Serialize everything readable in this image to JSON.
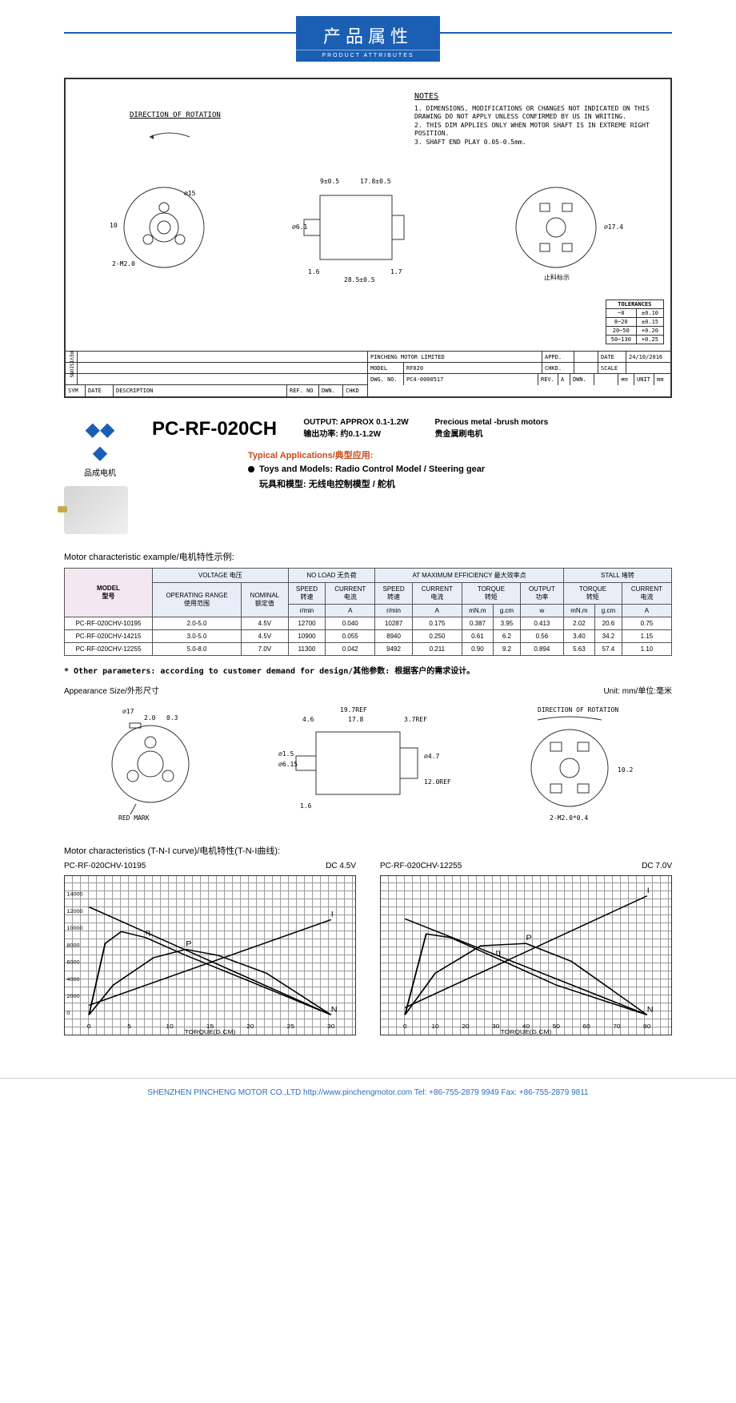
{
  "header": {
    "cn": "产品属性",
    "en": "PRODUCT ATTRIBUTES"
  },
  "drawing": {
    "rotation_label": "DIRECTION OF ROTATION",
    "notes_title": "NOTES",
    "notes": [
      "1. DIMENSIONS, MODIFICATIONS OR CHANGES NOT INDICATED ON THIS DRAWING DO NOT APPLY UNLESS CONFIRMED BY US IN WRITING.",
      "2. THIS DIM APPLIES ONLY WHEN MOTOR SHAFT IS IN EXTREME RIGHT POSITION.",
      "3. SHAFT END PLAY 0.05-0.5mm."
    ],
    "tolerances_title": "TOLERANCES",
    "tolerances": [
      {
        "range": "~8",
        "tol": "±0.10"
      },
      {
        "range": "8~20",
        "tol": "±0.15"
      },
      {
        "range": "20~50",
        "tol": "+0.20"
      },
      {
        "range": "50~130",
        "tol": "+0.25"
      }
    ],
    "dims": {
      "front_dia": "⌀15",
      "front_m": "2-M2.0",
      "side_top": "9±0.5",
      "side_len": "17.8±0.5",
      "side_shaft_d": "⌀6.1",
      "side_shaft_l": "1.6",
      "side_total": "28.5±0.5",
      "side_tab": "1.7",
      "back_dia": "⌀17.4",
      "back_note": "止料标示",
      "front_outer": "10"
    },
    "titleblock": {
      "company": "PINCHENG MOTOR LIMITED",
      "model_lbl": "MODEL",
      "model": "RF020",
      "dwg_lbl": "DWG. NO.",
      "dwg": "PC4-0000517",
      "rev_lbl": "REV.",
      "rev": "A",
      "appd": "APPD.",
      "chkd": "CHKD.",
      "dwn": "DWN.",
      "date_lbl": "DATE",
      "date": "24/10/2016",
      "scale_lbl": "SCALE",
      "unit_lbl": "UNIT",
      "unit": "mm",
      "left_hdrs": [
        "SYM",
        "DATE",
        "DESCRIPTION",
        "REF. NO",
        "DWN.",
        "CHKD"
      ],
      "revisions": "REVISIONS"
    }
  },
  "product": {
    "logo_text": "品成电机",
    "name": "PC-RF-020CH",
    "output_en": "OUTPUT: APPROX 0.1-1.2W",
    "output_cn": "输出功率: 约0.1-1.2W",
    "type_en": "Precious metal -brush motors",
    "type_cn": "贵金属刷电机",
    "app_title": "Typical Applications/典型应用:",
    "app_en": "Toys and Models: Radio Control Model / Steering gear",
    "app_cn": "玩具和模型: 无线电控制模型 / 舵机"
  },
  "char_section": "Motor characteristic example/电机特性示例:",
  "char_table": {
    "headers": {
      "model": "MODEL\n型号",
      "voltage": "VOLTAGE 电压",
      "noload": "NO LOAD 无负荷",
      "maxeff": "AT MAXIMUM EFFICIENCY   最大效率点",
      "stall": "STALL 堵转",
      "op_range": "OPERATING RANGE\n使用范围",
      "nominal": "NOMINAL\n额定值",
      "speed": "SPEED\n转速",
      "current": "CURRENT\n电流",
      "torque": "TORQUE\n转矩",
      "output": "OUTPUT\n功率",
      "rmin": "r/min",
      "a": "A",
      "mnm": "mN.m",
      "gcm": "g.cm",
      "w": "w"
    },
    "rows": [
      {
        "model": "PC-RF-020CHV-10195",
        "range": "2.0-5.0",
        "nom": "4.5V",
        "nl_spd": "12700",
        "nl_cur": "0.040",
        "me_spd": "10287",
        "me_cur": "0.175",
        "me_mnm": "0.387",
        "me_gcm": "3.95",
        "me_w": "0.413",
        "st_mnm": "2.02",
        "st_gcm": "20.6",
        "st_a": "0.75"
      },
      {
        "model": "PC-RF-020CHV-14215",
        "range": "3.0-5.0",
        "nom": "4.5V",
        "nl_spd": "10900",
        "nl_cur": "0.055",
        "me_spd": "8940",
        "me_cur": "0.250",
        "me_mnm": "0.61",
        "me_gcm": "6.2",
        "me_w": "0.56",
        "st_mnm": "3.40",
        "st_gcm": "34.2",
        "st_a": "1.15"
      },
      {
        "model": "PC-RF-020CHV-12255",
        "range": "5.0-8.0",
        "nom": "7.0V",
        "nl_spd": "11300",
        "nl_cur": "0.042",
        "me_spd": "9492",
        "me_cur": "0.211",
        "me_mnm": "0.90",
        "me_gcm": "9.2",
        "me_w": "0.894",
        "st_mnm": "5.63",
        "st_gcm": "57.4",
        "st_a": "1.10"
      }
    ]
  },
  "other_params": "* Other parameters: according to customer demand for design/其他参数: 根据客户的需求设计。",
  "appearance": {
    "label": "Appearance Size/外形尺寸",
    "unit": "Unit: mm/单位:毫米"
  },
  "dim2": {
    "d17": "⌀17",
    "w2": "2.0",
    "w03": "0.3",
    "red": "RED MARK",
    "ref197": "19.7REF",
    "w46": "4.6",
    "w178": "17.8",
    "ref37": "3.7REF",
    "d15": "⌀1.5",
    "d615": "⌀6.15",
    "w16": "1.6",
    "d47": "⌀4.7",
    "ref12": "12.0REF",
    "rot": "DIRECTION OF ROTATION",
    "m2": "2-M2.0*0.4",
    "h102": "10.2"
  },
  "curves": {
    "title": "Motor characteristics (T-N-I curve)/电机特性(T-N-I曲线):",
    "c1_model": "PC-RF-020CHV-10195",
    "c1_v": "DC 4.5V",
    "c2_model": "PC-RF-020CHV-12255",
    "c2_v": "DC 7.0V",
    "axes": {
      "n": "N",
      "i": "I",
      "p": "P",
      "torque": "TORQUE(G.CM)"
    },
    "c1": {
      "x_max": 30,
      "n_max": 14000,
      "i_max": 100,
      "p_max": 1.0,
      "x_ticks": [
        0,
        5,
        10,
        15,
        20,
        25,
        30
      ],
      "n_ticks": [
        0,
        2000,
        4000,
        6000,
        8000,
        10000,
        12000,
        14000
      ],
      "n_line": [
        [
          0,
          12700
        ],
        [
          30,
          0
        ]
      ],
      "i_line": [
        [
          0,
          8
        ],
        [
          30,
          80
        ]
      ],
      "p_line": [
        [
          0,
          0
        ],
        [
          3,
          25
        ],
        [
          8,
          48
        ],
        [
          12,
          55
        ],
        [
          16,
          50
        ],
        [
          22,
          35
        ],
        [
          30,
          0
        ]
      ],
      "eff_line": [
        [
          0,
          0
        ],
        [
          2,
          60
        ],
        [
          4,
          70
        ],
        [
          7,
          65
        ],
        [
          12,
          50
        ],
        [
          20,
          28
        ],
        [
          30,
          0
        ]
      ]
    },
    "c2": {
      "x_max": 80,
      "n_max": 14000,
      "i_max": 100,
      "p_max": 5.0,
      "x_ticks": [
        0,
        10,
        20,
        30,
        40,
        50,
        60,
        70,
        80
      ],
      "n_line": [
        [
          0,
          11300
        ],
        [
          80,
          0
        ]
      ],
      "i_line": [
        [
          0,
          6
        ],
        [
          80,
          100
        ]
      ],
      "p_line": [
        [
          0,
          0
        ],
        [
          10,
          35
        ],
        [
          25,
          58
        ],
        [
          40,
          60
        ],
        [
          55,
          45
        ],
        [
          80,
          0
        ]
      ],
      "eff_line": [
        [
          0,
          0
        ],
        [
          7,
          68
        ],
        [
          15,
          65
        ],
        [
          30,
          48
        ],
        [
          50,
          25
        ],
        [
          80,
          0
        ]
      ]
    }
  },
  "footer": "SHENZHEN PINCHENG MOTOR CO.,LTD   http://www.pinchengmotor.com   Tel: +86-755-2879 9949   Fax: +86-755-2879 9811",
  "colors": {
    "primary": "#1b5fb5",
    "accent": "#c94b1b",
    "border": "#333",
    "tbl_hdr": "#e8eef8",
    "tbl_model": "#f4e8f0"
  }
}
